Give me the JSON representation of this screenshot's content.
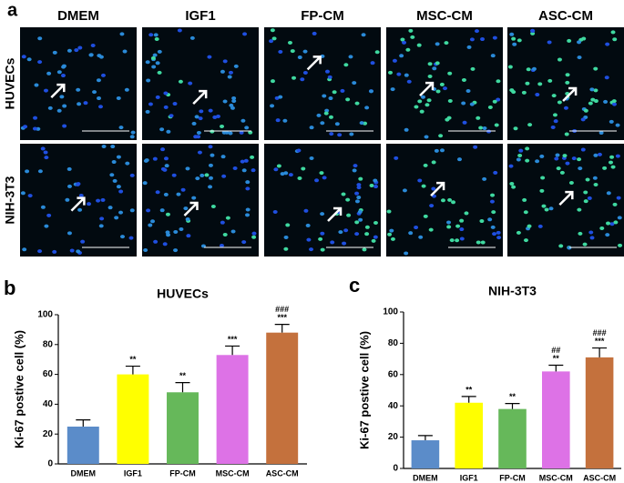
{
  "figure": {
    "panel_label": "a",
    "columns": [
      "DMEM",
      "IGF1",
      "FP-CM",
      "MSC-CM",
      "ASC-CM"
    ],
    "rows": [
      "HUVECs",
      "NIH-3T3"
    ]
  },
  "chart_data": [
    {
      "type": "bar",
      "panel_label": "b",
      "title": "HUVECs",
      "y_label": "Ki-67 postive cell  (%)",
      "categories": [
        "DMEM",
        "IGF1",
        "FP-CM",
        "MSC-CM",
        "ASC-CM"
      ],
      "values": [
        25,
        60,
        48,
        73,
        88
      ],
      "errors": [
        4.5,
        5.5,
        6.5,
        6,
        5.5
      ],
      "colors": [
        "#5b8cc9",
        "#ffff00",
        "#66b85a",
        "#dd72e6",
        "#c4713d"
      ],
      "significance": [
        null,
        "**",
        "**",
        "***",
        "***"
      ],
      "significance_2": [
        null,
        null,
        null,
        null,
        "###"
      ],
      "ylim": [
        0,
        100
      ],
      "yticks": [
        0,
        20,
        40,
        60,
        80,
        100
      ],
      "grid": false
    },
    {
      "type": "bar",
      "panel_label": "c",
      "title": "NIH-3T3",
      "y_label": "Ki-67 postive cell  (%)",
      "categories": [
        "DMEM",
        "IGF1",
        "FP-CM",
        "MSC-CM",
        "ASC-CM"
      ],
      "values": [
        18,
        42,
        38,
        62,
        71
      ],
      "errors": [
        3,
        4,
        3.5,
        4,
        6
      ],
      "colors": [
        "#5b8cc9",
        "#ffff00",
        "#66b85a",
        "#dd72e6",
        "#c4713d"
      ],
      "significance": [
        null,
        "**",
        "**",
        "**",
        "***"
      ],
      "significance_2": [
        null,
        null,
        null,
        "##",
        "###"
      ],
      "ylim": [
        0,
        100
      ],
      "yticks": [
        0,
        20,
        40,
        60,
        80,
        100
      ],
      "grid": false
    }
  ]
}
